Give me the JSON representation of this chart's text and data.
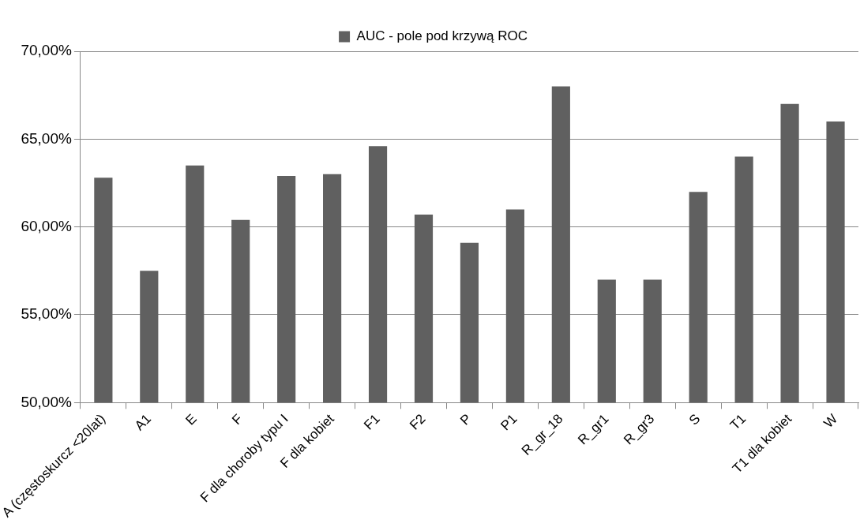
{
  "chart_data": {
    "type": "bar",
    "categories": [
      "A (częstoskurcz <20lat)",
      "A1",
      "E",
      "F",
      "F dla choroby typu I",
      "F dla kobiet",
      "F1",
      "F2",
      "P",
      "P1",
      "R_gr_18",
      "R_gr1",
      "R_gr3",
      "S",
      "T1",
      "T1 dla kobiet",
      "W"
    ],
    "series": [
      {
        "name": "AUC - pole pod krzywą ROC",
        "color": "#606060",
        "values": [
          62.8,
          57.5,
          63.5,
          60.4,
          62.9,
          63.0,
          64.6,
          60.7,
          59.1,
          61.0,
          68.0,
          57.0,
          57.0,
          62.0,
          64.0,
          67.0,
          66.0
        ]
      }
    ],
    "ylim": [
      50,
      70
    ],
    "yticks": [
      {
        "value": 50,
        "label": "50,00%"
      },
      {
        "value": 55,
        "label": "55,00%"
      },
      {
        "value": 60,
        "label": "60,00%"
      },
      {
        "value": 65,
        "label": "65,00%"
      },
      {
        "value": 70,
        "label": "70,00%"
      }
    ],
    "grid": "y",
    "legend": "top"
  }
}
